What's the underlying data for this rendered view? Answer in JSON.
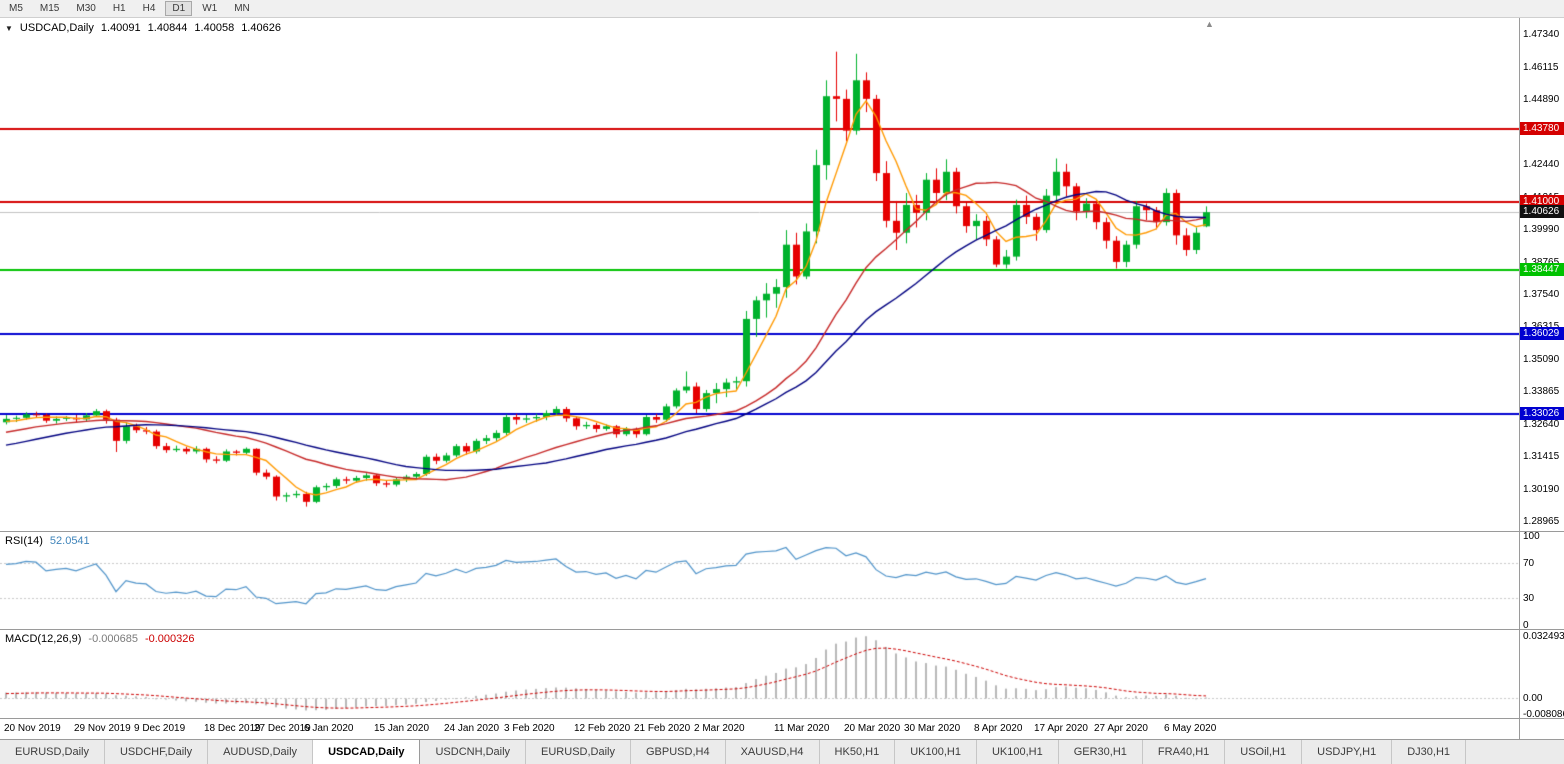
{
  "toolbar": {
    "timeframes": [
      "M5",
      "M15",
      "M30",
      "H1",
      "H4",
      "D1",
      "W1",
      "MN"
    ],
    "active": "D1"
  },
  "icons": {
    "dropdown": "▼",
    "scroll_end": "▲"
  },
  "chart_header": {
    "symbol": "USDCAD,Daily",
    "open": "1.40091",
    "high": "1.40844",
    "low": "1.40058",
    "close": "1.40626"
  },
  "rsi": {
    "label": "RSI(14)",
    "value": "52.0541",
    "period": 14,
    "color": "#4f93c9",
    "levels": [
      70,
      30
    ],
    "scale": [
      {
        "label": "100",
        "value": 100
      },
      {
        "label": "70",
        "value": 70
      },
      {
        "label": "30",
        "value": 30
      },
      {
        "label": "0",
        "value": 0
      }
    ]
  },
  "macd": {
    "label": "MACD(12,26,9)",
    "main_value": "-0.000685",
    "signal_value": "-0.000326",
    "fast": 12,
    "slow": 26,
    "signal": 9,
    "histogram_color": "#b8b8b8",
    "signal_color": "#cc0000",
    "range": {
      "max": 0.032493,
      "min": -0.008086
    },
    "scale": [
      {
        "label": "0.032493",
        "value": 0.032493
      },
      {
        "label": "0.00",
        "value": 0
      },
      {
        "label": "-0.008086",
        "value": -0.008086
      }
    ]
  },
  "tabs": {
    "items": [
      "EURUSD,Daily",
      "USDCHF,Daily",
      "AUDUSD,Daily",
      "USDCAD,Daily",
      "USDCNH,Daily",
      "EURUSD,Daily",
      "GBPUSD,H4",
      "XAUUSD,H4",
      "HK50,H1",
      "UK100,H1",
      "UK100,H1",
      "GER30,H1",
      "FRA40,H1",
      "USOil,H1",
      "USDJPY,H1",
      "DJ30,H1"
    ],
    "active_index": 3
  },
  "chart_data": {
    "type": "candlestick",
    "symbol": "USDCAD",
    "timeframe": "Daily",
    "colors": {
      "up": "#00b22d",
      "down": "#e60000",
      "current_line": "#c0c0c0"
    },
    "price_axis": {
      "max": 1.4795,
      "min": 1.286,
      "ticks": [
        "1.47340",
        "1.46115",
        "1.44890",
        "1.43665",
        "1.42440",
        "1.41215",
        "1.39990",
        "1.38765",
        "1.37540",
        "1.36315",
        "1.35090",
        "1.33865",
        "1.32640",
        "1.31415",
        "1.30190",
        "1.28965"
      ]
    },
    "hlines": [
      {
        "value": 1.4378,
        "label": "1.43780",
        "color": "#d40000"
      },
      {
        "value": 1.41,
        "label": "1.41000",
        "color": "#d40000"
      },
      {
        "value": 1.38447,
        "label": "1.38447",
        "color": "#00c200"
      },
      {
        "value": 1.36029,
        "label": "1.36029",
        "color": "#0000d0"
      },
      {
        "value": 1.33026,
        "label": "1.33026",
        "color": "#0000d0"
      }
    ],
    "current_price": {
      "value": 1.40626,
      "label": "1.40626"
    },
    "moving_averages": [
      {
        "name": "fast",
        "period": 5,
        "color": "#ff9900"
      },
      {
        "name": "medium",
        "period": 20,
        "color": "#c62828"
      },
      {
        "name": "slow",
        "period": 30,
        "color": "#000080"
      }
    ],
    "x_axis": {
      "dates": [
        "20 Nov 2019",
        "29 Nov 2019",
        "9 Dec 2019",
        "18 Dec 2019",
        "27 Dec 2019",
        "6 Jan 2020",
        "15 Jan 2020",
        "24 Jan 2020",
        "3 Feb 2020",
        "12 Feb 2020",
        "21 Feb 2020",
        "2 Mar 2020",
        "11 Mar 2020",
        "20 Mar 2020",
        "30 Mar 2020",
        "8 Apr 2020",
        "17 Apr 2020",
        "27 Apr 2020",
        "6 May 2020"
      ],
      "bar_indices": [
        0,
        7,
        13,
        20,
        25,
        30,
        37,
        44,
        50,
        57,
        63,
        69,
        77,
        84,
        90,
        97,
        103,
        109,
        116
      ]
    },
    "pre_closes": [
      1.329,
      1.3305,
      1.332,
      1.3335,
      1.331,
      1.3295,
      1.328,
      1.3265,
      1.325,
      1.3235,
      1.326,
      1.3282,
      1.327,
      1.3245,
      1.322,
      1.32,
      1.3185,
      1.3165,
      1.314,
      1.312,
      1.3105,
      1.309,
      1.3075,
      1.306,
      1.3052,
      1.3048,
      1.307,
      1.3095,
      1.311,
      1.3125,
      1.314,
      1.3155,
      1.317,
      1.3162,
      1.3175,
      1.3188,
      1.32,
      1.3215,
      1.323,
      1.3245,
      1.3238,
      1.3252,
      1.3265,
      1.3258,
      1.327,
      1.3262,
      1.3275,
      1.3268,
      1.3272,
      1.327
    ],
    "candles": [
      [
        1.327,
        1.3297,
        1.3262,
        1.3283
      ],
      [
        1.3283,
        1.3295,
        1.3271,
        1.3287
      ],
      [
        1.3287,
        1.3308,
        1.328,
        1.33
      ],
      [
        1.33,
        1.331,
        1.3289,
        1.3298
      ],
      [
        1.3298,
        1.3303,
        1.3268,
        1.3276
      ],
      [
        1.3276,
        1.3292,
        1.3265,
        1.3283
      ],
      [
        1.3283,
        1.3294,
        1.3275,
        1.3287
      ],
      [
        1.3287,
        1.3298,
        1.327,
        1.3281
      ],
      [
        1.3281,
        1.3305,
        1.3275,
        1.3296
      ],
      [
        1.3296,
        1.332,
        1.329,
        1.3312
      ],
      [
        1.3312,
        1.3318,
        1.3265,
        1.328
      ],
      [
        1.328,
        1.3287,
        1.3158,
        1.32
      ],
      [
        1.32,
        1.327,
        1.319,
        1.3255
      ],
      [
        1.3255,
        1.3265,
        1.323,
        1.324
      ],
      [
        1.324,
        1.3252,
        1.3225,
        1.3235
      ],
      [
        1.3235,
        1.3242,
        1.317,
        1.318
      ],
      [
        1.318,
        1.3192,
        1.3155,
        1.3165
      ],
      [
        1.3165,
        1.3182,
        1.3158,
        1.317
      ],
      [
        1.317,
        1.3178,
        1.315,
        1.316
      ],
      [
        1.316,
        1.318,
        1.3152,
        1.317
      ],
      [
        1.317,
        1.3175,
        1.3118,
        1.313
      ],
      [
        1.313,
        1.3142,
        1.3115,
        1.3125
      ],
      [
        1.3125,
        1.3168,
        1.312,
        1.316
      ],
      [
        1.316,
        1.3166,
        1.3145,
        1.3155
      ],
      [
        1.3155,
        1.3175,
        1.315,
        1.317
      ],
      [
        1.317,
        1.3172,
        1.307,
        1.308
      ],
      [
        1.308,
        1.3092,
        1.3055,
        1.3065
      ],
      [
        1.3065,
        1.307,
        1.2975,
        1.299
      ],
      [
        1.299,
        1.3005,
        1.297,
        1.2995
      ],
      [
        1.2995,
        1.3012,
        1.2985,
        1.3
      ],
      [
        1.3,
        1.3008,
        1.2952,
        1.297
      ],
      [
        1.297,
        1.3032,
        1.2965,
        1.3025
      ],
      [
        1.3025,
        1.304,
        1.3012,
        1.303
      ],
      [
        1.303,
        1.3062,
        1.3022,
        1.3055
      ],
      [
        1.3055,
        1.3065,
        1.3038,
        1.305
      ],
      [
        1.305,
        1.3068,
        1.3042,
        1.306
      ],
      [
        1.306,
        1.3078,
        1.305,
        1.307
      ],
      [
        1.307,
        1.3075,
        1.303,
        1.304
      ],
      [
        1.304,
        1.3052,
        1.3025,
        1.3035
      ],
      [
        1.3035,
        1.3062,
        1.3028,
        1.3055
      ],
      [
        1.3055,
        1.3072,
        1.3045,
        1.3065
      ],
      [
        1.3065,
        1.3082,
        1.3052,
        1.3075
      ],
      [
        1.3075,
        1.3148,
        1.3068,
        1.314
      ],
      [
        1.314,
        1.3152,
        1.3112,
        1.3125
      ],
      [
        1.3125,
        1.3155,
        1.3118,
        1.3145
      ],
      [
        1.3145,
        1.3188,
        1.3138,
        1.318
      ],
      [
        1.318,
        1.3192,
        1.3148,
        1.316
      ],
      [
        1.316,
        1.3208,
        1.3152,
        1.32
      ],
      [
        1.32,
        1.3222,
        1.3188,
        1.321
      ],
      [
        1.321,
        1.324,
        1.32,
        1.323
      ],
      [
        1.323,
        1.33,
        1.3222,
        1.329
      ],
      [
        1.329,
        1.3302,
        1.3262,
        1.328
      ],
      [
        1.328,
        1.3298,
        1.3268,
        1.3285
      ],
      [
        1.3285,
        1.3302,
        1.3272,
        1.329
      ],
      [
        1.329,
        1.3315,
        1.3278,
        1.3305
      ],
      [
        1.3305,
        1.333,
        1.3295,
        1.332
      ],
      [
        1.332,
        1.3328,
        1.3272,
        1.3285
      ],
      [
        1.3285,
        1.3292,
        1.3242,
        1.3255
      ],
      [
        1.3255,
        1.3272,
        1.3245,
        1.326
      ],
      [
        1.326,
        1.3268,
        1.3232,
        1.3245
      ],
      [
        1.3245,
        1.3262,
        1.3238,
        1.3255
      ],
      [
        1.3255,
        1.326,
        1.3212,
        1.3225
      ],
      [
        1.3225,
        1.3252,
        1.3218,
        1.3245
      ],
      [
        1.3245,
        1.325,
        1.3212,
        1.3225
      ],
      [
        1.3225,
        1.3298,
        1.322,
        1.329
      ],
      [
        1.329,
        1.3302,
        1.3268,
        1.328
      ],
      [
        1.328,
        1.334,
        1.3272,
        1.333
      ],
      [
        1.333,
        1.3398,
        1.3322,
        1.339
      ],
      [
        1.339,
        1.3462,
        1.338,
        1.3405
      ],
      [
        1.3405,
        1.342,
        1.3305,
        1.332
      ],
      [
        1.332,
        1.3392,
        1.331,
        1.338
      ],
      [
        1.338,
        1.3418,
        1.3342,
        1.3395
      ],
      [
        1.3395,
        1.3435,
        1.3365,
        1.342
      ],
      [
        1.342,
        1.3442,
        1.3388,
        1.3425
      ],
      [
        1.3425,
        1.369,
        1.3405,
        1.366
      ],
      [
        1.366,
        1.3745,
        1.3592,
        1.373
      ],
      [
        1.373,
        1.3795,
        1.3665,
        1.3755
      ],
      [
        1.3755,
        1.381,
        1.3702,
        1.378
      ],
      [
        1.378,
        1.3995,
        1.374,
        1.394
      ],
      [
        1.394,
        1.3985,
        1.379,
        1.382
      ],
      [
        1.382,
        1.402,
        1.381,
        1.399
      ],
      [
        1.399,
        1.4298,
        1.3945,
        1.424
      ],
      [
        1.424,
        1.456,
        1.4185,
        1.45
      ],
      [
        1.45,
        1.4668,
        1.4405,
        1.449
      ],
      [
        1.449,
        1.4525,
        1.433,
        1.437
      ],
      [
        1.437,
        1.466,
        1.4355,
        1.456
      ],
      [
        1.456,
        1.459,
        1.444,
        1.449
      ],
      [
        1.449,
        1.4505,
        1.418,
        1.421
      ],
      [
        1.421,
        1.4255,
        1.4005,
        1.403
      ],
      [
        1.403,
        1.4105,
        1.392,
        1.3985
      ],
      [
        1.3985,
        1.4135,
        1.3945,
        1.409
      ],
      [
        1.409,
        1.4128,
        1.4005,
        1.406
      ],
      [
        1.406,
        1.421,
        1.4032,
        1.4185
      ],
      [
        1.4185,
        1.4228,
        1.409,
        1.4135
      ],
      [
        1.4135,
        1.4262,
        1.4108,
        1.4215
      ],
      [
        1.4215,
        1.423,
        1.4058,
        1.4085
      ],
      [
        1.4085,
        1.4098,
        1.3985,
        1.401
      ],
      [
        1.401,
        1.4055,
        1.396,
        1.403
      ],
      [
        1.403,
        1.4048,
        1.3935,
        1.396
      ],
      [
        1.396,
        1.3972,
        1.3855,
        1.3865
      ],
      [
        1.3865,
        1.392,
        1.385,
        1.3895
      ],
      [
        1.3895,
        1.411,
        1.388,
        1.409
      ],
      [
        1.409,
        1.4125,
        1.4018,
        1.4045
      ],
      [
        1.4045,
        1.4058,
        1.3955,
        1.3995
      ],
      [
        1.3995,
        1.415,
        1.3985,
        1.4125
      ],
      [
        1.4125,
        1.4265,
        1.4105,
        1.4215
      ],
      [
        1.4215,
        1.4245,
        1.4122,
        1.416
      ],
      [
        1.416,
        1.4172,
        1.4032,
        1.4065
      ],
      [
        1.4065,
        1.4115,
        1.404,
        1.4095
      ],
      [
        1.4095,
        1.4108,
        1.3998,
        1.4025
      ],
      [
        1.4025,
        1.4042,
        1.3925,
        1.3955
      ],
      [
        1.3955,
        1.3972,
        1.385,
        1.3875
      ],
      [
        1.3875,
        1.3955,
        1.3855,
        1.394
      ],
      [
        1.394,
        1.4105,
        1.3925,
        1.4085
      ],
      [
        1.4085,
        1.4095,
        1.4032,
        1.407
      ],
      [
        1.407,
        1.4082,
        1.3998,
        1.4025
      ],
      [
        1.4025,
        1.4152,
        1.4012,
        1.4135
      ],
      [
        1.4135,
        1.4148,
        1.394,
        1.3975
      ],
      [
        1.3975,
        1.4002,
        1.3898,
        1.392
      ],
      [
        1.392,
        1.4005,
        1.3905,
        1.3985
      ],
      [
        1.40091,
        1.40844,
        1.40058,
        1.40626
      ]
    ]
  }
}
